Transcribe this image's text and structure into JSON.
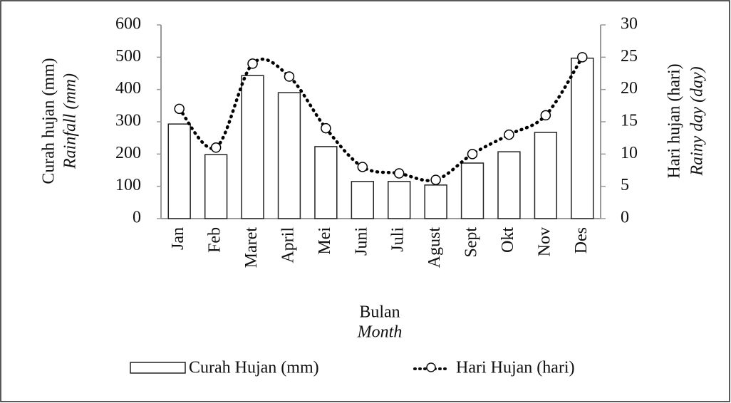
{
  "chart_data": {
    "type": "bar",
    "x_label": "Bulan",
    "x_label_en": "Month",
    "y_label": "Curah hujan (mm)",
    "y_label_en": "Rainfall (mm)",
    "y2_label": "Hari hujan (hari)",
    "y2_label_en": "Rainy day (day)",
    "categories": [
      "Jan",
      "Feb",
      "Maret",
      "April",
      "Mei",
      "Juni",
      "Juli",
      "Agust",
      "Sept",
      "Okt",
      "Nov",
      "Des"
    ],
    "series": [
      {
        "name": "Curah Hujan (mm)",
        "type": "bar",
        "color": "#ffffff",
        "values": [
          293,
          198,
          443,
          390,
          223,
          115,
          115,
          104,
          172,
          207,
          267,
          497
        ]
      },
      {
        "name": "Hari Hujan (hari)",
        "type": "line",
        "axis": "y2",
        "color": "#000000",
        "values": [
          17,
          11,
          24,
          22,
          14,
          8,
          7,
          6,
          10,
          13,
          16,
          25
        ]
      }
    ],
    "ylim": [
      0,
      600
    ],
    "yticks": [
      0,
      100,
      200,
      300,
      400,
      500,
      600
    ],
    "y2lim": [
      0,
      30
    ],
    "y2ticks": [
      0,
      5,
      10,
      15,
      20,
      25,
      30
    ]
  }
}
